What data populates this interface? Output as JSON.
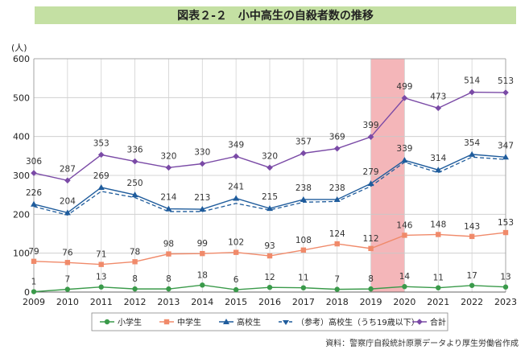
{
  "chart_data": {
    "type": "line",
    "title": "図表２-２　小中高生の自殺者数の推移",
    "ylabel": "(人)",
    "xlabel": "",
    "ylim": [
      0,
      600
    ],
    "yticks": [
      0,
      100,
      200,
      300,
      400,
      500,
      600
    ],
    "categories": [
      "2009",
      "2010",
      "2011",
      "2012",
      "2013",
      "2014",
      "2015",
      "2016",
      "2017",
      "2018",
      "2019",
      "2020",
      "2021",
      "2022",
      "2023"
    ],
    "highlight_range": [
      "2019",
      "2020"
    ],
    "highlight_color": "#f4b6b9",
    "grid": true,
    "legend_position": "bottom",
    "series": [
      {
        "name": "小学生",
        "color": "#3a9a4a",
        "marker": "circle",
        "dashed": false,
        "show_labels": true,
        "values": [
          1,
          7,
          13,
          8,
          8,
          18,
          6,
          12,
          11,
          7,
          8,
          14,
          11,
          17,
          13
        ]
      },
      {
        "name": "中学生",
        "color": "#f08a6a",
        "marker": "square",
        "dashed": false,
        "show_labels": true,
        "values": [
          79,
          76,
          71,
          78,
          98,
          99,
          102,
          93,
          108,
          124,
          112,
          146,
          148,
          143,
          153
        ]
      },
      {
        "name": "高校生",
        "color": "#1f5c9c",
        "marker": "triangle",
        "dashed": false,
        "show_labels": true,
        "values": [
          226,
          204,
          269,
          250,
          214,
          213,
          241,
          215,
          238,
          238,
          279,
          339,
          314,
          354,
          347
        ]
      },
      {
        "name": "（参考）高校生（うち19歳以下）",
        "color": "#1f5c9c",
        "marker": "none",
        "dashed": true,
        "show_labels": false,
        "values": [
          220,
          198,
          259,
          243,
          207,
          207,
          228,
          211,
          231,
          233,
          272,
          334,
          307,
          347,
          341
        ]
      },
      {
        "name": "合計",
        "color": "#7a4aa6",
        "marker": "diamond",
        "dashed": false,
        "show_labels": true,
        "values": [
          306,
          287,
          353,
          336,
          320,
          330,
          349,
          320,
          357,
          369,
          399,
          499,
          473,
          514,
          513
        ]
      }
    ],
    "source": "資料：警察庁自殺統計原票データより厚生労働省作成"
  }
}
